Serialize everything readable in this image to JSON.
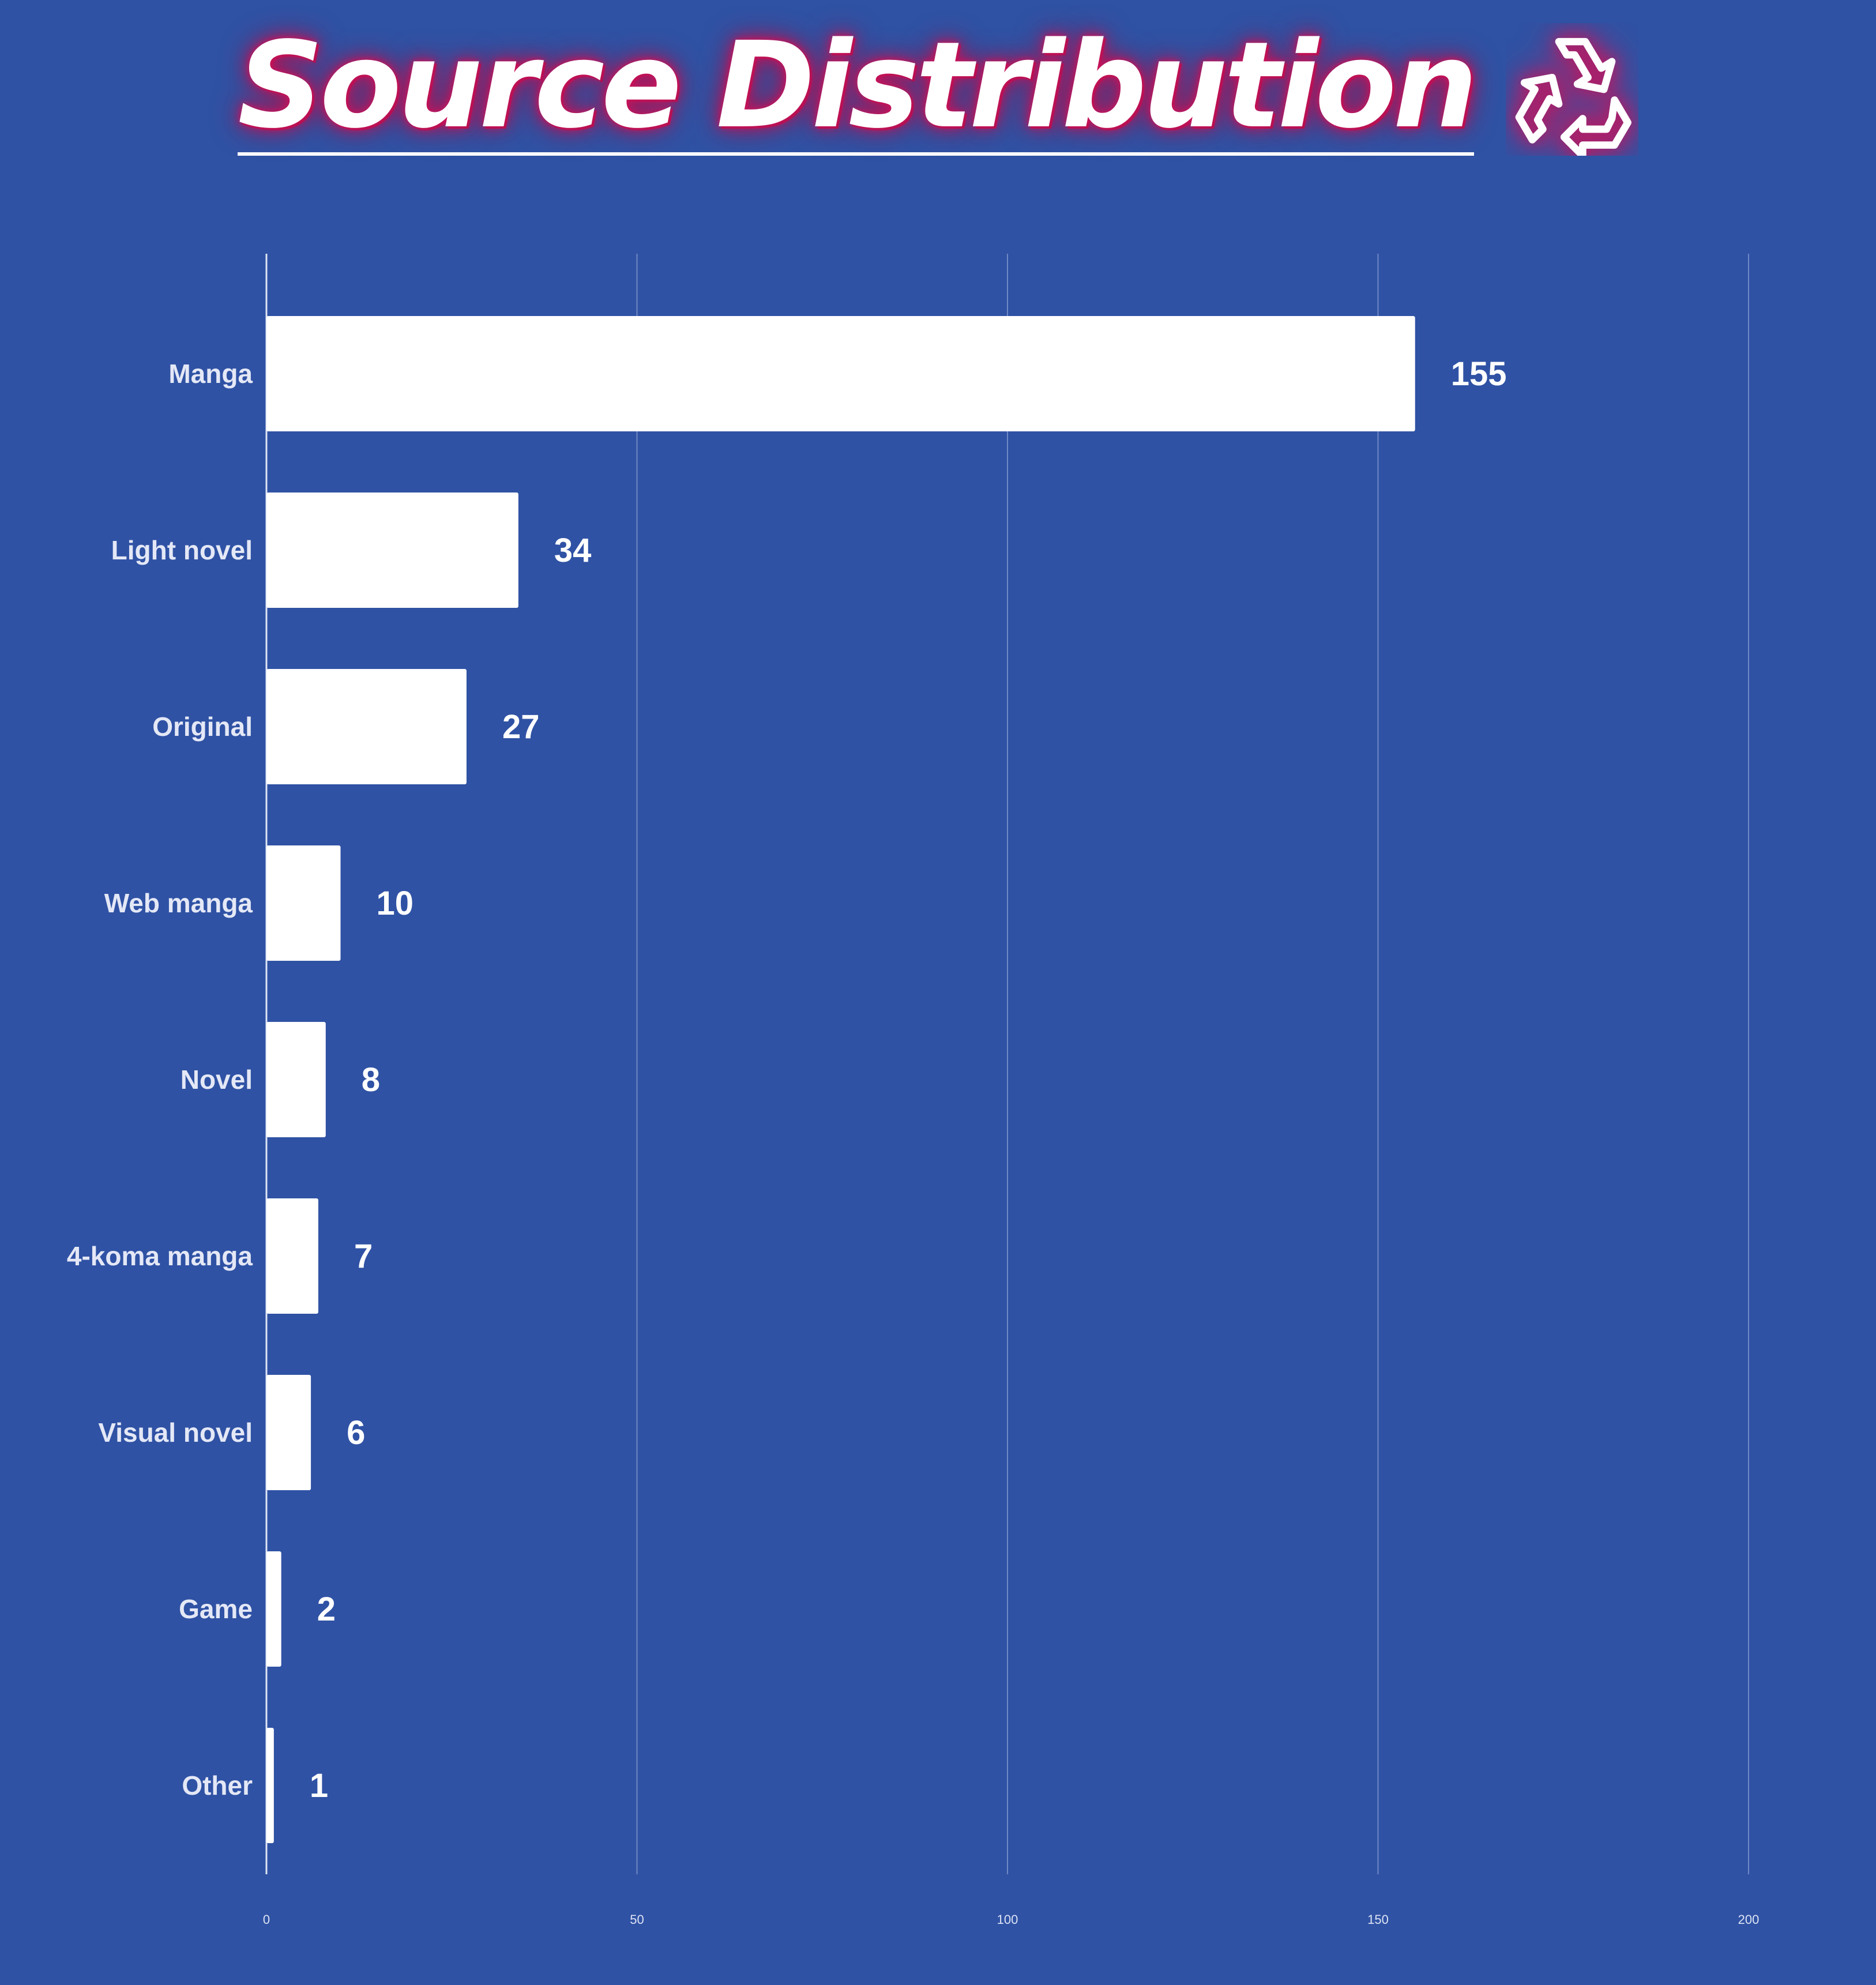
{
  "title": "Source Distribution",
  "icon": "recycle-icon",
  "colors": {
    "background": "#2f52a4",
    "bar": "#ffffff",
    "title_glow": "#c8145c",
    "grid": "#6f88c6"
  },
  "chart_data": {
    "type": "bar",
    "orientation": "horizontal",
    "categories": [
      "Manga",
      "Light novel",
      "Original",
      "Web manga",
      "Novel",
      "4-koma manga",
      "Visual novel",
      "Game",
      "Other"
    ],
    "values": [
      155,
      34,
      27,
      10,
      8,
      7,
      6,
      2,
      1
    ],
    "xlim": [
      0,
      200
    ],
    "xticks": [
      0,
      50,
      100,
      150,
      200
    ],
    "grid": true,
    "data_labels": true
  }
}
